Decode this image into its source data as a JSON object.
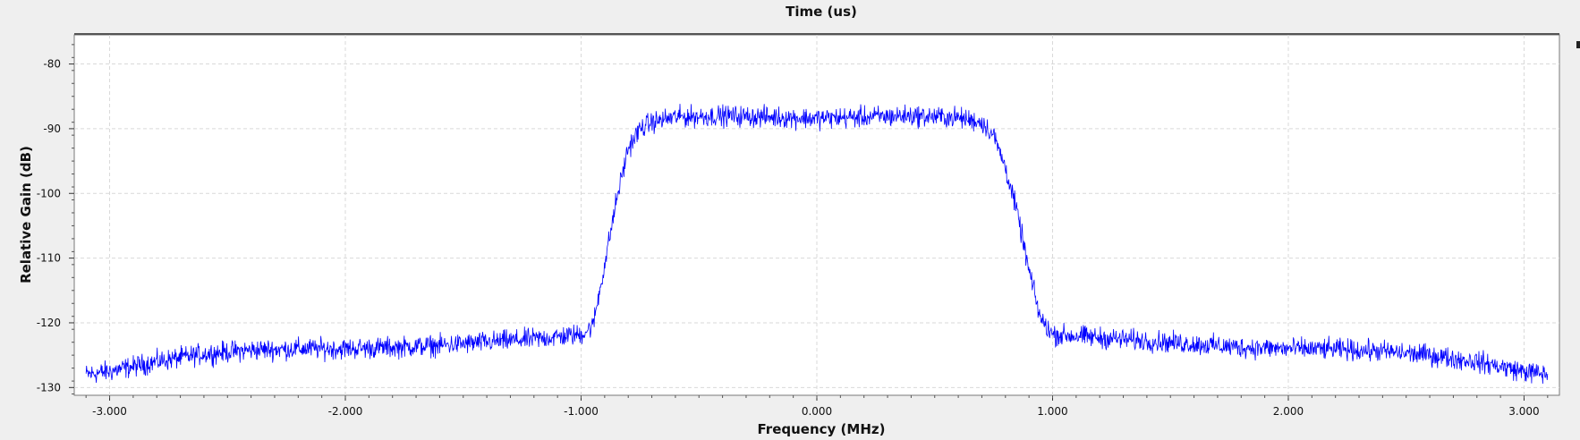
{
  "chart_data": {
    "type": "line",
    "title": "Time (us)",
    "xlabel": "Frequency (MHz)",
    "ylabel": "Relative Gain (dB)",
    "xlim": [
      -3.15,
      3.15
    ],
    "ylim": [
      -131.2,
      -75.5
    ],
    "x_ticks": [
      -3.0,
      -2.0,
      -1.0,
      0.0,
      1.0,
      2.0,
      3.0
    ],
    "x_tick_labels": [
      "-3.000",
      "-2.000",
      "-1.000",
      "0.000",
      "1.000",
      "2.000",
      "3.000"
    ],
    "y_ticks": [
      -80,
      -90,
      -100,
      -110,
      -120,
      -130
    ],
    "y_tick_labels": [
      "-80",
      "-90",
      "-100",
      "-110",
      "-120",
      "-130"
    ],
    "grid": true,
    "series": [
      {
        "color": "#0000ff",
        "x": [
          -3.1,
          -3.0,
          -2.8,
          -2.6,
          -2.4,
          -2.2,
          -2.0,
          -1.8,
          -1.6,
          -1.4,
          -1.2,
          -1.0,
          -0.95,
          -0.9,
          -0.85,
          -0.8,
          -0.75,
          -0.7,
          -0.6,
          -0.4,
          -0.2,
          0.0,
          0.2,
          0.4,
          0.6,
          0.7,
          0.75,
          0.8,
          0.85,
          0.9,
          0.95,
          1.0,
          1.2,
          1.4,
          1.6,
          1.8,
          2.0,
          2.2,
          2.4,
          2.6,
          2.8,
          3.0,
          3.1
        ],
        "values": [
          -128,
          -127.5,
          -126,
          -124.8,
          -124.2,
          -124,
          -124,
          -123.8,
          -123.5,
          -123,
          -122.5,
          -121.8,
          -120.5,
          -111,
          -101,
          -93,
          -90,
          -89,
          -88.2,
          -88,
          -88.2,
          -88.4,
          -88.2,
          -88,
          -88.3,
          -89,
          -91,
          -96,
          -103,
          -112,
          -119.5,
          -121.8,
          -122.3,
          -122.8,
          -123.3,
          -123.8,
          -124,
          -124.1,
          -124.4,
          -125,
          -126,
          -127.5,
          -128
        ]
      }
    ]
  }
}
